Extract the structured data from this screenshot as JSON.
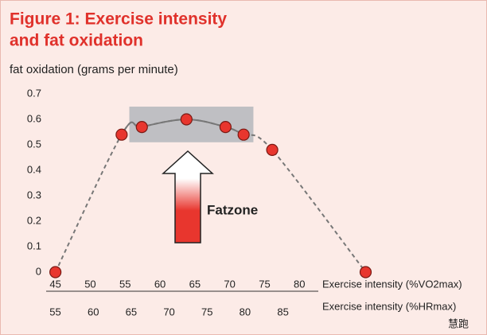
{
  "chart_data": {
    "type": "line",
    "title": "Figure 1: Exercise intensity",
    "subtitle": "and fat oxidation",
    "ylabel": "fat oxidation (grams per minute)",
    "xlabel": "Exercise intensity (%VO2max)",
    "x2label": "Exercise intensity (%HRmax)",
    "annotation": "Fatzone",
    "watermark": "慧跑",
    "series": [
      {
        "name": "fat oxidation",
        "color": "#e8362e",
        "x": [
          45,
          54.5,
          57.4,
          63.8,
          69.4,
          72,
          76.1,
          89.5
        ],
        "values": [
          0,
          0.54,
          0.57,
          0.6,
          0.57,
          0.54,
          0.48,
          0
        ]
      }
    ],
    "zone": {
      "x": [
        55.6,
        73.4
      ],
      "y": [
        0.51,
        0.65
      ]
    },
    "xlim": [
      43.9,
      90.7
    ],
    "xticks": [
      45,
      50,
      55,
      60,
      65,
      70,
      75,
      80
    ],
    "x2lim": [
      54,
      97
    ],
    "x2ticks": [
      55,
      60,
      65,
      70,
      75,
      80,
      85
    ],
    "ylim": [
      0,
      0.7
    ],
    "yticks": [
      0,
      0.1,
      0.2,
      0.3,
      0.4,
      0.5,
      0.6,
      0.7
    ]
  }
}
